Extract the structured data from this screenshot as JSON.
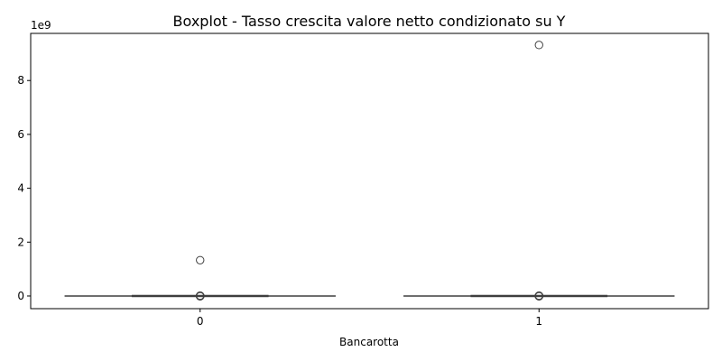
{
  "chart_data": {
    "type": "boxplot",
    "title": "Boxplot - Tasso crescita valore netto condizionato su Y",
    "xlabel": "Bancarotta",
    "ylabel": "",
    "y_offset_label": "1e9",
    "y_scale_factor": 1000000000,
    "categories": [
      "0",
      "1"
    ],
    "ylim": [
      -0.47,
      9.75
    ],
    "yticks": [
      0,
      2,
      4,
      6,
      8
    ],
    "grid": false,
    "boxes": [
      {
        "category": "0",
        "whisker_low": 0,
        "q1": 0,
        "median": 0,
        "q3": 0,
        "whisker_high": 0,
        "outliers": [
          1.33,
          0.015,
          0.005,
          0.0,
          -0.005,
          -0.01
        ]
      },
      {
        "category": "1",
        "whisker_low": 0,
        "q1": 0,
        "median": 0,
        "q3": 0,
        "whisker_high": 0,
        "outliers": [
          9.32,
          0.015,
          0.005,
          0.0,
          -0.005,
          -0.01
        ]
      }
    ]
  }
}
